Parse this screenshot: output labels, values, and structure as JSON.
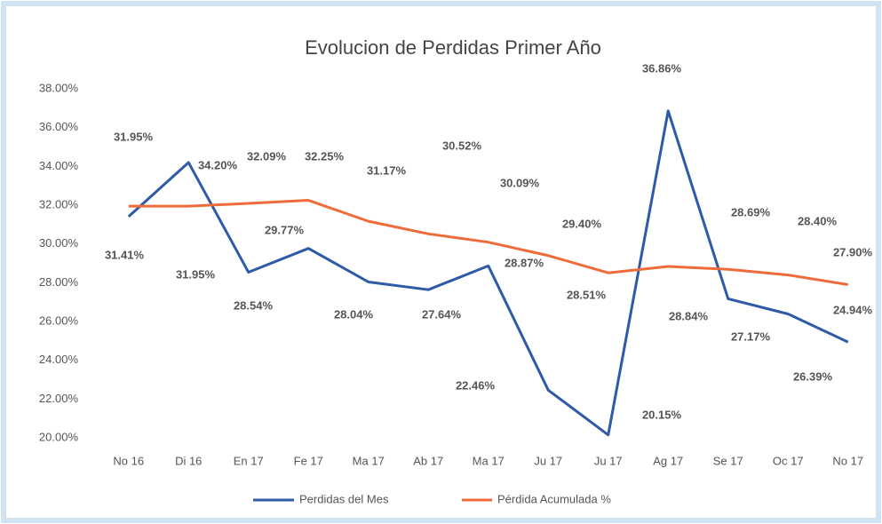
{
  "chart_data": {
    "type": "line",
    "title": "Evolucion de Perdidas Primer Año",
    "categories": [
      "No 16",
      "Di 16",
      "En 17",
      "Fe 17",
      "Ma 17",
      "Ab 17",
      "Ma 17",
      "Ju 17",
      "Ju 17",
      "Ag 17",
      "Se 17",
      "Oc 17",
      "No 17"
    ],
    "series": [
      {
        "name": "Perdidas del Mes",
        "color": "#2e5aa8",
        "values": [
          31.41,
          34.2,
          28.54,
          29.77,
          28.04,
          27.64,
          28.87,
          22.46,
          20.15,
          36.86,
          27.17,
          26.39,
          24.94
        ],
        "value_labels": [
          "31.41%",
          "34.20%",
          "28.54%",
          "29.77%",
          "28.04%",
          "27.64%",
          "28.87%",
          "22.46%",
          "20.15%",
          "36.86%",
          "27.17%",
          "26.39%",
          "24.94%"
        ]
      },
      {
        "name": "Pérdida Acumulada %",
        "color": "#ef6b3a",
        "values": [
          31.95,
          31.95,
          32.09,
          32.25,
          31.17,
          30.52,
          30.09,
          29.4,
          28.51,
          28.84,
          28.69,
          28.4,
          27.9
        ],
        "value_labels": [
          "31.95%",
          "31.95%",
          "32.09%",
          "32.25%",
          "31.17%",
          "30.52%",
          "30.09%",
          "29.40%",
          "28.51%",
          "28.84%",
          "28.69%",
          "28.40%",
          "27.90%"
        ]
      }
    ],
    "ylim": [
      20,
      38
    ],
    "yticks": [
      {
        "value": 20,
        "label": "20.00%"
      },
      {
        "value": 22,
        "label": "22.00%"
      },
      {
        "value": 24,
        "label": "24.00%"
      },
      {
        "value": 26,
        "label": "26.00%"
      },
      {
        "value": 28,
        "label": "28.00%"
      },
      {
        "value": 30,
        "label": "30.00%"
      },
      {
        "value": 32,
        "label": "32.00%"
      },
      {
        "value": 34,
        "label": "34.00%"
      },
      {
        "value": 36,
        "label": "36.00%"
      },
      {
        "value": 38,
        "label": "38.00%"
      }
    ],
    "grid": false,
    "legend": "bottom"
  }
}
